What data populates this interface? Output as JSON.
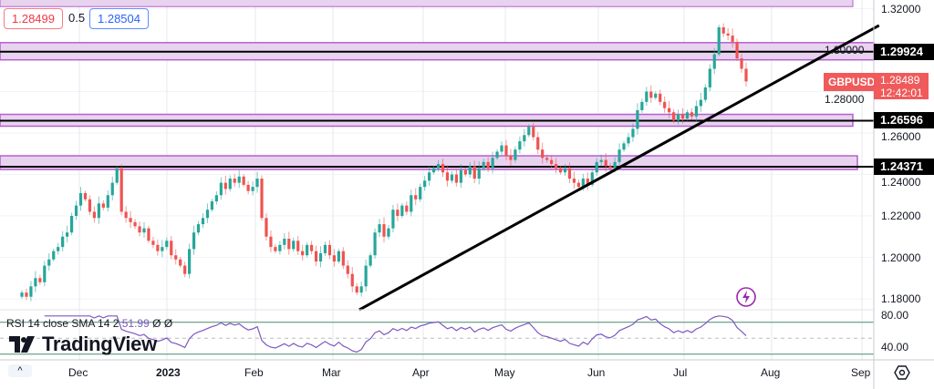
{
  "legend": {
    "bid": "1.28499",
    "spread": "0.5",
    "ask": "1.28504"
  },
  "symbol": "GBPUSD",
  "last_price": "1.28489",
  "countdown": "12:42:01",
  "colors": {
    "up": "#26a69a",
    "down": "#ef5350",
    "zone_fill": "#e8d3ef",
    "zone_border": "#b65fcf",
    "rsi_line": "#7e57c2",
    "rsi_band": "#4a8c6e",
    "last_label": "#f05a5a"
  },
  "chart_data": [
    {
      "type": "candlestick",
      "title": "",
      "yaxis": {
        "ticks": [
          "1.32000",
          "1.30000",
          "1.28000",
          "1.26000",
          "1.24000",
          "1.22000",
          "1.20000",
          "1.18000"
        ],
        "range": [
          1.1725,
          1.3245
        ]
      },
      "xaxis": {
        "ticks": [
          "Dec",
          "2023",
          "Feb",
          "Mar",
          "Apr",
          "May",
          "Jun",
          "Jul",
          "Aug",
          "Sep"
        ]
      },
      "grid": true,
      "close": [
        1.183,
        1.181,
        1.186,
        1.19,
        1.188,
        1.196,
        1.199,
        1.203,
        1.205,
        1.21,
        1.212,
        1.22,
        1.225,
        1.231,
        1.228,
        1.222,
        1.219,
        1.226,
        1.224,
        1.23,
        1.236,
        1.243,
        1.222,
        1.219,
        1.217,
        1.215,
        1.212,
        1.214,
        1.208,
        1.206,
        1.203,
        1.205,
        1.208,
        1.201,
        1.199,
        1.196,
        1.192,
        1.204,
        1.212,
        1.216,
        1.219,
        1.223,
        1.227,
        1.23,
        1.236,
        1.233,
        1.238,
        1.236,
        1.239,
        1.235,
        1.232,
        1.234,
        1.238,
        1.219,
        1.21,
        1.205,
        1.203,
        1.206,
        1.209,
        1.204,
        1.208,
        1.203,
        1.201,
        1.206,
        1.203,
        1.198,
        1.202,
        1.206,
        1.201,
        1.198,
        1.203,
        1.196,
        1.192,
        1.186,
        1.183,
        1.186,
        1.196,
        1.201,
        1.212,
        1.216,
        1.21,
        1.214,
        1.223,
        1.22,
        1.225,
        1.222,
        1.23,
        1.228,
        1.234,
        1.237,
        1.241,
        1.243,
        1.245,
        1.241,
        1.237,
        1.24,
        1.236,
        1.242,
        1.24,
        1.244,
        1.238,
        1.243,
        1.246,
        1.243,
        1.248,
        1.251,
        1.254,
        1.249,
        1.247,
        1.252,
        1.256,
        1.259,
        1.263,
        1.258,
        1.252,
        1.248,
        1.247,
        1.245,
        1.243,
        1.241,
        1.243,
        1.238,
        1.236,
        1.234,
        1.238,
        1.235,
        1.241,
        1.246,
        1.247,
        1.244,
        1.243,
        1.246,
        1.252,
        1.255,
        1.258,
        1.262,
        1.271,
        1.275,
        1.28,
        1.277,
        1.279,
        1.275,
        1.272,
        1.27,
        1.266,
        1.269,
        1.267,
        1.27,
        1.268,
        1.273,
        1.276,
        1.282,
        1.291,
        1.298,
        1.311,
        1.308,
        1.307,
        1.304,
        1.296,
        1.291,
        1.2849
      ],
      "price_lines": [
        {
          "label": "1.29924",
          "price": 1.29924,
          "zone": [
            1.2953,
            1.3036
          ]
        },
        {
          "label": "1.26596",
          "price": 1.26596,
          "zone": [
            1.2633,
            1.269
          ]
        },
        {
          "label": "1.24371",
          "price": 1.24371,
          "zone": [
            1.2424,
            1.249
          ]
        }
      ],
      "top_zone": [
        1.321,
        1.3245
      ],
      "trendline": {
        "start": {
          "date": "2023-03-09",
          "price": 1.1747
        },
        "end": {
          "date": "2023-09-07",
          "price": 1.3119
        }
      }
    },
    {
      "type": "line",
      "title": "RSI 14 close SMA 14 2",
      "value": "51.99",
      "extra": [
        "Ø",
        "Ø"
      ],
      "yaxis": {
        "ticks": [
          "80.00",
          "40.00"
        ],
        "bands": [
          70,
          50,
          30
        ]
      }
    }
  ]
}
